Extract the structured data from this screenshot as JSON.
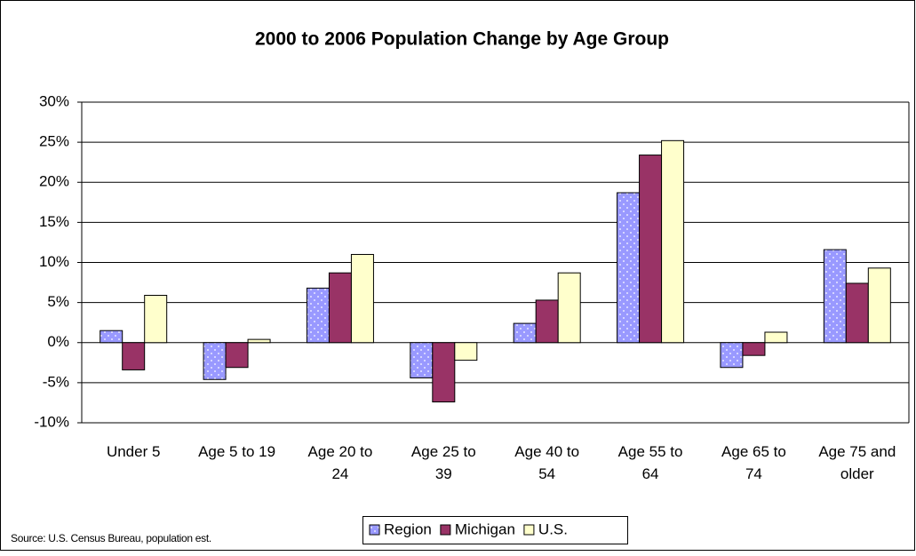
{
  "chart_data": {
    "type": "bar",
    "title": "2000 to 2006 Population Change by Age Group",
    "categories": [
      "Under 5",
      "Age 5 to 19",
      "Age 20 to 24",
      "Age 25 to 39",
      "Age 40 to 54",
      "Age 55 to 64",
      "Age 65 to 74",
      "Age 75 and older"
    ],
    "series": [
      {
        "name": "Region",
        "color": "#9999ff",
        "values": [
          1.5,
          -4.6,
          6.8,
          -4.4,
          2.4,
          18.7,
          -3.1,
          11.6
        ]
      },
      {
        "name": "Michigan",
        "color": "#993366",
        "values": [
          -3.4,
          -3.1,
          8.7,
          -7.4,
          5.3,
          23.4,
          -1.6,
          7.4
        ]
      },
      {
        "name": "U.S.",
        "color": "#ffffcc",
        "values": [
          5.9,
          0.4,
          11.0,
          -2.2,
          8.7,
          25.2,
          1.3,
          9.3
        ]
      }
    ],
    "ylim": [
      -10,
      30
    ],
    "yticks": [
      {
        "value": -10,
        "label": "-10%"
      },
      {
        "value": -5,
        "label": "-5%"
      },
      {
        "value": 0,
        "label": "0%"
      },
      {
        "value": 5,
        "label": "5%"
      },
      {
        "value": 10,
        "label": "10%"
      },
      {
        "value": 15,
        "label": "15%"
      },
      {
        "value": 20,
        "label": "20%"
      },
      {
        "value": 25,
        "label": "25%"
      },
      {
        "value": 30,
        "label": "30%"
      }
    ],
    "grid": true,
    "legend": "bottom",
    "source": "Source: U.S. Census Bureau, population est."
  }
}
